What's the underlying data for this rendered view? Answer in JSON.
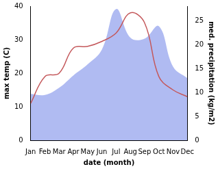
{
  "chart_data": {
    "type": "line",
    "x_label": "date (month)",
    "y_label": "max temp (C)",
    "y2_label": "med. precipitation (kg/m2)",
    "categories": [
      "Jan",
      "Feb",
      "Mar",
      "Apr",
      "May",
      "Jun",
      "Jul",
      "Aug",
      "Sep",
      "Oct",
      "Nov",
      "Dec"
    ],
    "ylim": [
      0,
      40
    ],
    "yticks": [
      0,
      10,
      20,
      30,
      40
    ],
    "y2lim": [
      0,
      28.1
    ],
    "y2ticks": [
      0,
      5,
      10,
      15,
      20,
      25
    ],
    "grid": false,
    "series": [
      {
        "type": "area",
        "axis": "y2",
        "color": "#b0bbf2",
        "values": [
          9.7,
          9.5,
          11,
          13.6,
          15.9,
          19,
          27.5,
          21.5,
          21.3,
          23.9,
          15.4,
          13
        ]
      },
      {
        "type": "line",
        "axis": "y",
        "color": "#c4585b",
        "values": [
          11,
          19,
          20,
          27.5,
          28,
          29.5,
          32,
          38,
          35,
          19,
          15,
          13
        ]
      }
    ]
  }
}
